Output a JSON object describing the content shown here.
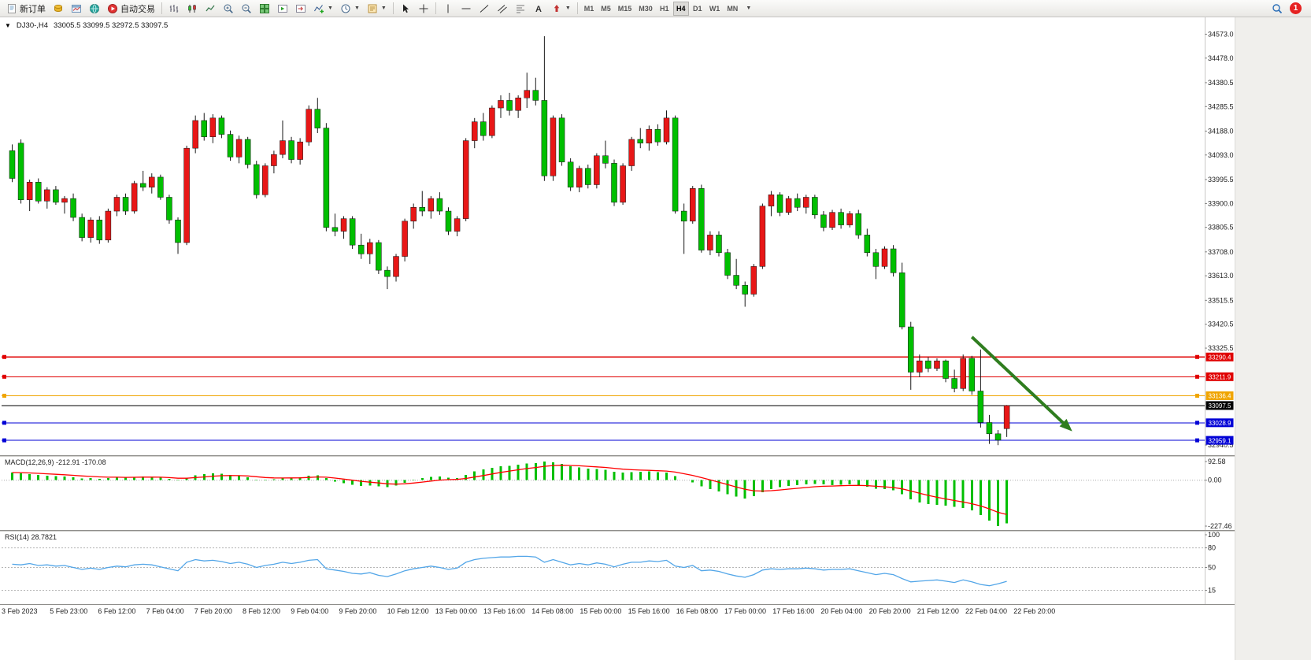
{
  "toolbar": {
    "new_order": "新订单",
    "autotrade": "自动交易",
    "timeframes": [
      "M1",
      "M5",
      "M15",
      "M30",
      "H1",
      "H4",
      "D1",
      "W1",
      "MN"
    ],
    "active_timeframe": "H4",
    "notification_count": "1"
  },
  "chart_header": {
    "symbol_period": "DJ30-,H4",
    "ohlc": "33005.5 33099.5 32972.5 33097.5"
  },
  "indicators": {
    "macd_label": "MACD(12,26,9) -212.91 -170.08",
    "rsi_label": "RSI(14) 28.7821"
  },
  "chart_data": {
    "type": "candlestick",
    "symbol": "DJ30-",
    "period": "H4",
    "current_ohlc": {
      "open": 33005.5,
      "high": 33099.5,
      "low": 32972.5,
      "close": 33097.5
    },
    "price_range": [
      32925,
      34615
    ],
    "price_ticks": [
      34573.0,
      34478.0,
      34380.5,
      34285.5,
      34188.0,
      34093.0,
      33995.5,
      33900.0,
      33805.5,
      33708.0,
      33613.0,
      33515.5,
      33420.5,
      33325.5,
      32940.5
    ],
    "time_labels": [
      "3 Feb 2023",
      "5 Feb 23:00",
      "6 Feb 12:00",
      "7 Feb 04:00",
      "7 Feb 20:00",
      "8 Feb 12:00",
      "9 Feb 04:00",
      "9 Feb 20:00",
      "10 Feb 12:00",
      "13 Feb 00:00",
      "13 Feb 16:00",
      "14 Feb 08:00",
      "15 Feb 00:00",
      "15 Feb 16:00",
      "16 Feb 08:00",
      "17 Feb 00:00",
      "17 Feb 16:00",
      "20 Feb 04:00",
      "20 Feb 20:00",
      "21 Feb 12:00",
      "22 Feb 04:00",
      "22 Feb 20:00"
    ],
    "colors": {
      "bull": "#e81717",
      "bear": "#00bf00",
      "wick": "#1a1a1a"
    },
    "horizontal_lines": [
      {
        "price": 33290.4,
        "color": "#e00000"
      },
      {
        "price": 33211.9,
        "color": "#e00000"
      },
      {
        "price": 33136.4,
        "color": "#f0a500"
      },
      {
        "price": 33097.5,
        "color": "#000000",
        "role": "current-price"
      },
      {
        "price": 33028.9,
        "color": "#0202d6"
      },
      {
        "price": 32959.1,
        "color": "#0202d6"
      }
    ],
    "arrow": {
      "from_index": 110,
      "from_price": 33370,
      "to_index": 121.5,
      "to_price": 32995,
      "color": "#2f7d1f"
    },
    "candles": [
      [
        34110,
        34135,
        33985,
        34000
      ],
      [
        34140,
        34155,
        33900,
        33915
      ],
      [
        33915,
        33995,
        33870,
        33985
      ],
      [
        33985,
        34000,
        33900,
        33910
      ],
      [
        33910,
        33965,
        33880,
        33955
      ],
      [
        33955,
        33970,
        33895,
        33905
      ],
      [
        33905,
        33930,
        33860,
        33920
      ],
      [
        33920,
        33940,
        33830,
        33845
      ],
      [
        33845,
        33860,
        33750,
        33765
      ],
      [
        33765,
        33845,
        33745,
        33835
      ],
      [
        33835,
        33850,
        33740,
        33755
      ],
      [
        33755,
        33880,
        33745,
        33870
      ],
      [
        33870,
        33935,
        33850,
        33925
      ],
      [
        33925,
        33940,
        33855,
        33870
      ],
      [
        33870,
        33990,
        33860,
        33980
      ],
      [
        33980,
        34030,
        33950,
        33965
      ],
      [
        33965,
        34020,
        33940,
        34005
      ],
      [
        34005,
        34015,
        33915,
        33925
      ],
      [
        33925,
        33935,
        33820,
        33835
      ],
      [
        33835,
        33845,
        33700,
        33745
      ],
      [
        33745,
        34130,
        33735,
        34120
      ],
      [
        34120,
        34250,
        34100,
        34230
      ],
      [
        34230,
        34260,
        34150,
        34165
      ],
      [
        34165,
        34255,
        34140,
        34240
      ],
      [
        34240,
        34250,
        34160,
        34175
      ],
      [
        34175,
        34190,
        34070,
        34085
      ],
      [
        34085,
        34170,
        34060,
        34155
      ],
      [
        34155,
        34165,
        34040,
        34055
      ],
      [
        34055,
        34070,
        33920,
        33935
      ],
      [
        33935,
        34060,
        33925,
        34050
      ],
      [
        34050,
        34110,
        34020,
        34095
      ],
      [
        34095,
        34230,
        34080,
        34150
      ],
      [
        34150,
        34165,
        34060,
        34075
      ],
      [
        34075,
        34160,
        34055,
        34145
      ],
      [
        34145,
        34290,
        34130,
        34275
      ],
      [
        34275,
        34320,
        34180,
        34200
      ],
      [
        34200,
        34220,
        33790,
        33805
      ],
      [
        33805,
        33860,
        33770,
        33790
      ],
      [
        33790,
        33850,
        33760,
        33840
      ],
      [
        33840,
        33850,
        33720,
        33735
      ],
      [
        33735,
        33780,
        33680,
        33700
      ],
      [
        33700,
        33760,
        33660,
        33745
      ],
      [
        33745,
        33755,
        33620,
        33635
      ],
      [
        33635,
        33650,
        33560,
        33610
      ],
      [
        33610,
        33700,
        33590,
        33690
      ],
      [
        33690,
        33840,
        33670,
        33830
      ],
      [
        33830,
        33900,
        33800,
        33885
      ],
      [
        33885,
        33950,
        33850,
        33870
      ],
      [
        33870,
        33930,
        33840,
        33920
      ],
      [
        33920,
        33945,
        33855,
        33870
      ],
      [
        33870,
        33885,
        33775,
        33790
      ],
      [
        33790,
        33850,
        33770,
        33840
      ],
      [
        33840,
        34160,
        33830,
        34150
      ],
      [
        34150,
        34240,
        34120,
        34225
      ],
      [
        34225,
        34260,
        34150,
        34170
      ],
      [
        34170,
        34290,
        34160,
        34280
      ],
      [
        34280,
        34330,
        34240,
        34310
      ],
      [
        34310,
        34340,
        34250,
        34270
      ],
      [
        34270,
        34330,
        34240,
        34320
      ],
      [
        34320,
        34420,
        34280,
        34350
      ],
      [
        34350,
        34400,
        34290,
        34310
      ],
      [
        34310,
        34565,
        33990,
        34010
      ],
      [
        34010,
        34250,
        33990,
        34240
      ],
      [
        34240,
        34255,
        34050,
        34065
      ],
      [
        34065,
        34080,
        33950,
        33965
      ],
      [
        33965,
        34050,
        33945,
        34040
      ],
      [
        34040,
        34055,
        33960,
        33975
      ],
      [
        33975,
        34100,
        33960,
        34090
      ],
      [
        34090,
        34150,
        34040,
        34060
      ],
      [
        34060,
        34075,
        33890,
        33905
      ],
      [
        33905,
        34060,
        33895,
        34050
      ],
      [
        34050,
        34165,
        34030,
        34155
      ],
      [
        34155,
        34200,
        34120,
        34140
      ],
      [
        34140,
        34210,
        34110,
        34195
      ],
      [
        34195,
        34215,
        34130,
        34145
      ],
      [
        34145,
        34270,
        34135,
        34240
      ],
      [
        34240,
        34250,
        33860,
        33870
      ],
      [
        33870,
        33900,
        33700,
        33830
      ],
      [
        33830,
        33970,
        33820,
        33960
      ],
      [
        33960,
        33975,
        33705,
        33715
      ],
      [
        33715,
        33790,
        33695,
        33775
      ],
      [
        33775,
        33790,
        33690,
        33705
      ],
      [
        33705,
        33720,
        33600,
        33615
      ],
      [
        33615,
        33680,
        33560,
        33575
      ],
      [
        33575,
        33590,
        33490,
        33540
      ],
      [
        33540,
        33660,
        33530,
        33650
      ],
      [
        33650,
        33900,
        33640,
        33890
      ],
      [
        33890,
        33950,
        33850,
        33935
      ],
      [
        33935,
        33945,
        33850,
        33865
      ],
      [
        33865,
        33930,
        33855,
        33920
      ],
      [
        33920,
        33940,
        33870,
        33885
      ],
      [
        33885,
        33935,
        33860,
        33925
      ],
      [
        33925,
        33935,
        33840,
        33855
      ],
      [
        33855,
        33870,
        33790,
        33805
      ],
      [
        33805,
        33875,
        33795,
        33865
      ],
      [
        33865,
        33880,
        33800,
        33815
      ],
      [
        33815,
        33870,
        33805,
        33860
      ],
      [
        33860,
        33875,
        33760,
        33775
      ],
      [
        33775,
        33800,
        33690,
        33705
      ],
      [
        33705,
        33720,
        33600,
        33650
      ],
      [
        33650,
        33730,
        33640,
        33720
      ],
      [
        33720,
        33735,
        33610,
        33625
      ],
      [
        33625,
        33665,
        33400,
        33410
      ],
      [
        33410,
        33430,
        33160,
        33230
      ],
      [
        33230,
        33300,
        33210,
        33275
      ],
      [
        33275,
        33290,
        33230,
        33245
      ],
      [
        33245,
        33285,
        33235,
        33275
      ],
      [
        33275,
        33280,
        33190,
        33205
      ],
      [
        33205,
        33240,
        33150,
        33165
      ],
      [
        33165,
        33300,
        33155,
        33285
      ],
      [
        33285,
        33295,
        33140,
        33155
      ],
      [
        33155,
        33320,
        33010,
        33030
      ],
      [
        33030,
        33060,
        32945,
        32985
      ],
      [
        32985,
        33000,
        32940,
        32960
      ],
      [
        33005.5,
        33099.5,
        32972.5,
        33097.5
      ]
    ],
    "macd": {
      "params": "12,26,9",
      "value": -212.91,
      "signal": -170.08,
      "axis_ticks": [
        92.58,
        0.0,
        -227.46
      ],
      "range": [
        -227.46,
        92.58
      ],
      "hist_color": "#00bf00",
      "signal_color": "#ff0000",
      "histogram": [
        38,
        35,
        30,
        26,
        22,
        20,
        18,
        14,
        8,
        10,
        6,
        10,
        14,
        12,
        16,
        18,
        16,
        12,
        6,
        -2,
        10,
        24,
        30,
        34,
        32,
        26,
        22,
        14,
        2,
        -2,
        4,
        10,
        12,
        14,
        22,
        24,
        10,
        -6,
        -14,
        -22,
        -28,
        -26,
        -30,
        -34,
        -26,
        -12,
        2,
        10,
        16,
        18,
        12,
        10,
        26,
        44,
        54,
        62,
        70,
        72,
        76,
        82,
        84,
        92,
        88,
        80,
        70,
        64,
        58,
        56,
        52,
        42,
        38,
        40,
        42,
        44,
        40,
        38,
        20,
        0,
        -10,
        -30,
        -44,
        -56,
        -70,
        -82,
        -90,
        -80,
        -60,
        -44,
        -34,
        -28,
        -24,
        -20,
        -18,
        -20,
        -24,
        -22,
        -20,
        -24,
        -32,
        -42,
        -44,
        -50,
        -70,
        -95,
        -110,
        -118,
        -122,
        -126,
        -132,
        -138,
        -150,
        -172,
        -200,
        -227,
        -213
      ]
    },
    "rsi": {
      "period": 14,
      "value": 28.7821,
      "axis_ticks": [
        100,
        80,
        50,
        15
      ],
      "levels": [
        80,
        50,
        15
      ],
      "range": [
        0,
        100
      ],
      "color": "#53a6e8",
      "values": [
        55,
        54,
        56,
        53,
        54,
        52,
        53,
        50,
        47,
        49,
        47,
        50,
        52,
        51,
        54,
        55,
        54,
        51,
        48,
        45,
        58,
        62,
        60,
        61,
        59,
        56,
        58,
        55,
        50,
        53,
        55,
        58,
        56,
        58,
        61,
        62,
        48,
        46,
        44,
        41,
        40,
        42,
        38,
        36,
        40,
        45,
        48,
        50,
        52,
        50,
        47,
        49,
        58,
        62,
        64,
        65,
        66,
        66,
        67,
        67,
        66,
        58,
        62,
        58,
        54,
        56,
        54,
        57,
        55,
        51,
        55,
        58,
        58,
        60,
        59,
        61,
        52,
        50,
        53,
        45,
        46,
        44,
        40,
        37,
        35,
        39,
        46,
        48,
        47,
        48,
        48,
        49,
        48,
        46,
        47,
        47,
        48,
        45,
        42,
        39,
        41,
        39,
        33,
        28,
        29,
        30,
        31,
        29,
        27,
        31,
        28,
        24,
        22,
        25,
        28.8
      ]
    }
  }
}
